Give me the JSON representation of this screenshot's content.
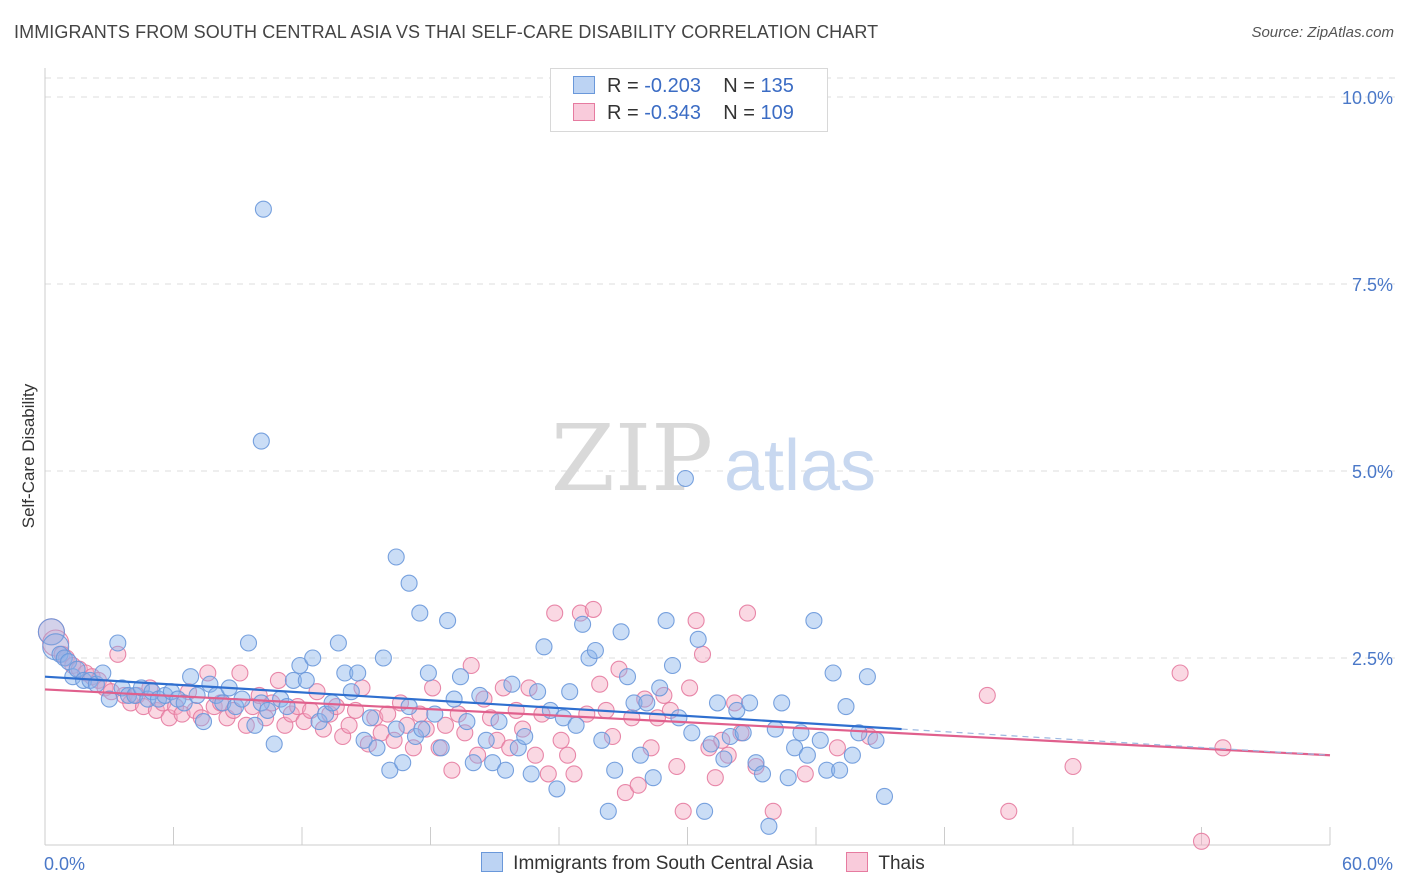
{
  "title": "IMMIGRANTS FROM SOUTH CENTRAL ASIA VS THAI SELF-CARE DISABILITY CORRELATION CHART",
  "source": "Source: ZipAtlas.com",
  "watermark": {
    "zip": "ZIP",
    "atlas": "atlas"
  },
  "legend": {
    "rows": [
      {
        "r_label": "R =",
        "r_value": "-0.203",
        "n_label": "N =",
        "n_value": "135"
      },
      {
        "r_label": "R =",
        "r_value": "-0.343",
        "n_label": "N =",
        "n_value": "109"
      }
    ]
  },
  "chart_data": {
    "type": "scatter",
    "title": "IMMIGRANTS FROM SOUTH CENTRAL ASIA VS THAI SELF-CARE DISABILITY CORRELATION CHART",
    "xlabel": "",
    "ylabel": "Self-Care Disability",
    "xlim": [
      0,
      60
    ],
    "ylim": [
      0,
      10.5
    ],
    "x_tick_labels": [
      "0.0%",
      "60.0%"
    ],
    "y_ticks": [
      2.5,
      5.0,
      7.5,
      10.0
    ],
    "y_tick_labels": [
      "2.5%",
      "5.0%",
      "7.5%",
      "10.0%"
    ],
    "grid": true,
    "legend_placement": "top-center",
    "series": [
      {
        "name": "Immigrants from South Central Asia",
        "color": "#8ab4ec",
        "edge": "#6a98da",
        "r": -0.203,
        "n": 135,
        "trend": {
          "x": [
            0,
            40
          ],
          "y": [
            2.25,
            1.55
          ]
        },
        "trend_dashed": {
          "x": [
            40,
            60
          ],
          "y": [
            1.55,
            1.2
          ]
        },
        "points": [
          [
            0.3,
            2.85
          ],
          [
            0.5,
            2.65
          ],
          [
            0.7,
            2.55
          ],
          [
            0.9,
            2.5
          ],
          [
            1.1,
            2.45
          ],
          [
            1.3,
            2.25
          ],
          [
            1.5,
            2.35
          ],
          [
            1.8,
            2.2
          ],
          [
            2.1,
            2.2
          ],
          [
            2.4,
            2.15
          ],
          [
            2.7,
            2.3
          ],
          [
            3.0,
            1.95
          ],
          [
            3.4,
            2.7
          ],
          [
            3.6,
            2.1
          ],
          [
            3.9,
            2.0
          ],
          [
            4.2,
            2.0
          ],
          [
            4.5,
            2.1
          ],
          [
            4.8,
            1.95
          ],
          [
            5.0,
            2.05
          ],
          [
            5.3,
            1.95
          ],
          [
            5.6,
            2.0
          ],
          [
            5.9,
            2.05
          ],
          [
            6.2,
            1.95
          ],
          [
            6.5,
            1.9
          ],
          [
            6.8,
            2.25
          ],
          [
            7.1,
            2.0
          ],
          [
            7.4,
            1.65
          ],
          [
            7.7,
            2.15
          ],
          [
            8.0,
            2.0
          ],
          [
            8.3,
            1.9
          ],
          [
            8.6,
            2.1
          ],
          [
            8.9,
            1.85
          ],
          [
            9.2,
            1.95
          ],
          [
            9.5,
            2.7
          ],
          [
            9.8,
            1.6
          ],
          [
            10.1,
            1.9
          ],
          [
            10.4,
            1.8
          ],
          [
            10.7,
            1.35
          ],
          [
            11.0,
            1.95
          ],
          [
            11.3,
            1.85
          ],
          [
            11.6,
            2.2
          ],
          [
            11.9,
            2.4
          ],
          [
            12.2,
            2.2
          ],
          [
            12.5,
            2.5
          ],
          [
            12.8,
            1.65
          ],
          [
            13.1,
            1.75
          ],
          [
            13.4,
            1.9
          ],
          [
            13.7,
            2.7
          ],
          [
            14.0,
            2.3
          ],
          [
            14.3,
            2.05
          ],
          [
            14.6,
            2.3
          ],
          [
            14.9,
            1.4
          ],
          [
            15.2,
            1.7
          ],
          [
            15.5,
            1.3
          ],
          [
            15.8,
            2.5
          ],
          [
            16.1,
            1.0
          ],
          [
            16.4,
            1.55
          ],
          [
            16.7,
            1.1
          ],
          [
            17.0,
            1.85
          ],
          [
            17.3,
            1.45
          ],
          [
            17.6,
            1.55
          ],
          [
            17.9,
            2.3
          ],
          [
            18.2,
            1.75
          ],
          [
            18.5,
            1.3
          ],
          [
            18.8,
            3.0
          ],
          [
            19.1,
            1.95
          ],
          [
            19.4,
            2.25
          ],
          [
            19.7,
            1.65
          ],
          [
            20.0,
            1.1
          ],
          [
            20.3,
            2.0
          ],
          [
            20.6,
            1.4
          ],
          [
            20.9,
            1.1
          ],
          [
            21.2,
            1.65
          ],
          [
            21.5,
            1.0
          ],
          [
            21.8,
            2.15
          ],
          [
            22.1,
            1.3
          ],
          [
            22.4,
            1.45
          ],
          [
            22.7,
            0.95
          ],
          [
            23.0,
            2.05
          ],
          [
            23.3,
            2.65
          ],
          [
            23.6,
            1.8
          ],
          [
            23.9,
            0.75
          ],
          [
            24.2,
            1.7
          ],
          [
            24.5,
            2.05
          ],
          [
            24.8,
            1.6
          ],
          [
            25.1,
            2.95
          ],
          [
            25.4,
            2.5
          ],
          [
            25.7,
            2.6
          ],
          [
            26.0,
            1.4
          ],
          [
            26.3,
            0.45
          ],
          [
            26.6,
            1.0
          ],
          [
            26.9,
            2.85
          ],
          [
            27.2,
            2.25
          ],
          [
            27.5,
            1.9
          ],
          [
            27.8,
            1.2
          ],
          [
            28.1,
            1.9
          ],
          [
            28.4,
            0.9
          ],
          [
            28.7,
            2.1
          ],
          [
            29.0,
            3.0
          ],
          [
            29.3,
            2.4
          ],
          [
            29.6,
            1.7
          ],
          [
            29.9,
            4.9
          ],
          [
            30.2,
            1.5
          ],
          [
            30.5,
            2.75
          ],
          [
            30.8,
            0.45
          ],
          [
            31.1,
            1.35
          ],
          [
            31.4,
            1.9
          ],
          [
            31.7,
            1.15
          ],
          [
            32.0,
            1.45
          ],
          [
            32.3,
            1.8
          ],
          [
            32.6,
            1.5
          ],
          [
            32.9,
            1.9
          ],
          [
            33.2,
            1.1
          ],
          [
            33.5,
            0.95
          ],
          [
            33.8,
            0.25
          ],
          [
            34.1,
            1.55
          ],
          [
            34.4,
            1.9
          ],
          [
            34.7,
            0.9
          ],
          [
            35.0,
            1.3
          ],
          [
            35.3,
            1.5
          ],
          [
            35.6,
            1.2
          ],
          [
            35.9,
            3.0
          ],
          [
            36.2,
            1.4
          ],
          [
            36.5,
            1.0
          ],
          [
            36.8,
            2.3
          ],
          [
            37.1,
            1.0
          ],
          [
            37.4,
            1.85
          ],
          [
            37.7,
            1.2
          ],
          [
            38.0,
            1.5
          ],
          [
            38.4,
            2.25
          ],
          [
            38.8,
            1.4
          ],
          [
            39.2,
            0.65
          ],
          [
            10.1,
            5.4
          ],
          [
            16.4,
            3.85
          ],
          [
            10.2,
            8.5
          ],
          [
            17.5,
            3.1
          ],
          [
            17.0,
            3.5
          ]
        ]
      },
      {
        "name": "Thais",
        "color": "#f4a8c2",
        "edge": "#e67ba0",
        "r": -0.343,
        "n": 109,
        "trend": {
          "x": [
            0,
            60
          ],
          "y": [
            2.08,
            1.2
          ]
        },
        "points": [
          [
            0.3,
            2.85
          ],
          [
            0.5,
            2.7
          ],
          [
            0.8,
            2.55
          ],
          [
            1.0,
            2.5
          ],
          [
            1.3,
            2.4
          ],
          [
            1.6,
            2.35
          ],
          [
            1.9,
            2.3
          ],
          [
            2.2,
            2.25
          ],
          [
            2.5,
            2.2
          ],
          [
            2.8,
            2.1
          ],
          [
            3.1,
            2.05
          ],
          [
            3.4,
            2.55
          ],
          [
            3.7,
            2.0
          ],
          [
            4.0,
            1.9
          ],
          [
            4.3,
            2.0
          ],
          [
            4.6,
            1.85
          ],
          [
            4.9,
            2.1
          ],
          [
            5.2,
            1.8
          ],
          [
            5.5,
            1.9
          ],
          [
            5.8,
            1.7
          ],
          [
            6.1,
            1.85
          ],
          [
            6.4,
            1.75
          ],
          [
            6.7,
            2.05
          ],
          [
            7.0,
            1.8
          ],
          [
            7.3,
            1.7
          ],
          [
            7.6,
            2.3
          ],
          [
            7.9,
            1.85
          ],
          [
            8.2,
            1.9
          ],
          [
            8.5,
            1.7
          ],
          [
            8.8,
            1.8
          ],
          [
            9.1,
            2.3
          ],
          [
            9.4,
            1.6
          ],
          [
            9.7,
            1.85
          ],
          [
            10.0,
            2.0
          ],
          [
            10.3,
            1.7
          ],
          [
            10.6,
            1.9
          ],
          [
            10.9,
            2.2
          ],
          [
            11.2,
            1.6
          ],
          [
            11.5,
            1.75
          ],
          [
            11.8,
            1.85
          ],
          [
            12.1,
            1.65
          ],
          [
            12.4,
            1.8
          ],
          [
            12.7,
            2.05
          ],
          [
            13.0,
            1.55
          ],
          [
            13.3,
            1.75
          ],
          [
            13.6,
            1.85
          ],
          [
            13.9,
            1.45
          ],
          [
            14.2,
            1.6
          ],
          [
            14.5,
            1.8
          ],
          [
            14.8,
            2.1
          ],
          [
            15.1,
            1.35
          ],
          [
            15.4,
            1.7
          ],
          [
            15.7,
            1.5
          ],
          [
            16.0,
            1.75
          ],
          [
            16.3,
            1.4
          ],
          [
            16.6,
            1.9
          ],
          [
            16.9,
            1.6
          ],
          [
            17.2,
            1.3
          ],
          [
            17.5,
            1.75
          ],
          [
            17.8,
            1.55
          ],
          [
            18.1,
            2.1
          ],
          [
            18.4,
            1.3
          ],
          [
            18.7,
            1.6
          ],
          [
            19.0,
            1.0
          ],
          [
            19.3,
            1.75
          ],
          [
            19.6,
            1.5
          ],
          [
            19.9,
            2.4
          ],
          [
            20.2,
            1.2
          ],
          [
            20.5,
            1.95
          ],
          [
            20.8,
            1.7
          ],
          [
            21.1,
            1.4
          ],
          [
            21.4,
            2.1
          ],
          [
            21.7,
            1.3
          ],
          [
            22.0,
            1.8
          ],
          [
            22.3,
            1.55
          ],
          [
            22.6,
            2.1
          ],
          [
            22.9,
            1.2
          ],
          [
            23.2,
            1.75
          ],
          [
            23.5,
            0.95
          ],
          [
            23.8,
            3.1
          ],
          [
            24.1,
            1.4
          ],
          [
            24.4,
            1.2
          ],
          [
            24.7,
            0.95
          ],
          [
            25.0,
            3.1
          ],
          [
            25.3,
            1.75
          ],
          [
            25.6,
            3.15
          ],
          [
            25.9,
            2.15
          ],
          [
            26.2,
            1.8
          ],
          [
            26.5,
            1.45
          ],
          [
            26.8,
            2.35
          ],
          [
            27.1,
            0.7
          ],
          [
            27.4,
            1.7
          ],
          [
            27.7,
            0.8
          ],
          [
            28.0,
            1.95
          ],
          [
            28.3,
            1.3
          ],
          [
            28.6,
            1.7
          ],
          [
            28.9,
            2.0
          ],
          [
            29.2,
            1.8
          ],
          [
            29.5,
            1.05
          ],
          [
            29.8,
            0.45
          ],
          [
            30.1,
            2.1
          ],
          [
            30.4,
            3.0
          ],
          [
            30.7,
            2.55
          ],
          [
            31.0,
            1.3
          ],
          [
            31.3,
            0.9
          ],
          [
            31.6,
            1.4
          ],
          [
            31.9,
            1.2
          ],
          [
            32.2,
            1.9
          ],
          [
            32.5,
            1.5
          ],
          [
            32.8,
            3.1
          ],
          [
            33.2,
            1.05
          ],
          [
            34.0,
            0.45
          ],
          [
            35.5,
            0.95
          ],
          [
            37.0,
            1.3
          ],
          [
            38.5,
            1.45
          ],
          [
            44.0,
            2.0
          ],
          [
            45.0,
            0.45
          ],
          [
            48.0,
            1.05
          ],
          [
            53.0,
            2.3
          ],
          [
            54.0,
            0.05
          ],
          [
            55.0,
            1.3
          ]
        ]
      }
    ]
  }
}
